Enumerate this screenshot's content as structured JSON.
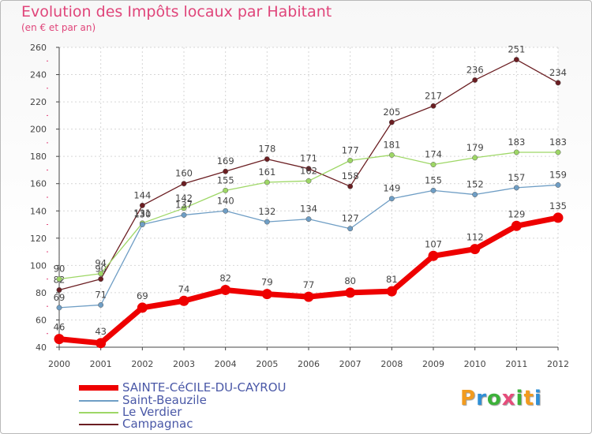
{
  "header": {
    "title": "Evolution des Impôts locaux par Habitant",
    "subtitle": "(en € et par an)"
  },
  "logo": {
    "text": "Proxiti"
  },
  "chart_data": {
    "type": "line",
    "title": "Evolution des Impôts locaux par Habitant",
    "subtitle": "(en € et par an)",
    "xlabel": "",
    "ylabel": "",
    "x": [
      "2000",
      "2001",
      "2002",
      "2003",
      "2004",
      "2005",
      "2006",
      "2007",
      "2008",
      "2009",
      "2010",
      "2011",
      "2012"
    ],
    "ylim": [
      40,
      260
    ],
    "yticks": [
      40,
      60,
      80,
      100,
      120,
      140,
      160,
      180,
      200,
      220,
      240,
      260
    ],
    "grid": true,
    "legend_position": "bottom-left",
    "series": [
      {
        "name": "Campagnac",
        "color": "#6b1e22",
        "values": [
          82,
          90,
          144,
          160,
          169,
          178,
          171,
          158,
          205,
          217,
          236,
          251,
          234
        ]
      },
      {
        "name": "Le Verdier",
        "color": "#9ed766",
        "values": [
          90,
          94,
          131,
          142,
          155,
          161,
          162,
          177,
          181,
          174,
          179,
          183,
          183
        ]
      },
      {
        "name": "Saint-Beauzile",
        "color": "#6f9ec5",
        "values": [
          69,
          71,
          130,
          137,
          140,
          132,
          134,
          127,
          149,
          155,
          152,
          157,
          159
        ]
      },
      {
        "name": "SAINTE-CéCILE-DU-CAYROU",
        "color": "#ee0000",
        "values": [
          46,
          43,
          69,
          74,
          82,
          79,
          77,
          80,
          81,
          107,
          112,
          129,
          135
        ]
      }
    ],
    "legend": [
      "SAINTE-CéCILE-DU-CAYROU",
      "Saint-Beauzile",
      "Le Verdier",
      "Campagnac"
    ]
  }
}
